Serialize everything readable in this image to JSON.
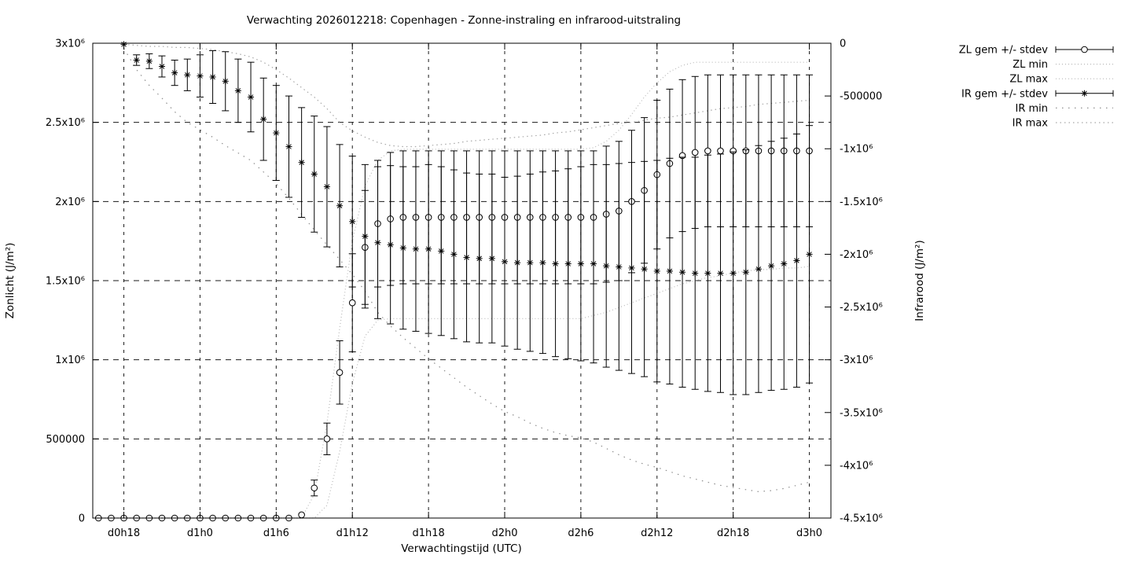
{
  "page": {
    "background": "#ffffff",
    "foreground": "#000000"
  },
  "chart_data": {
    "type": "line",
    "title": "Verwachting 2026012218: Copenhagen - Zonne-instraling en infrarood-uitstraling",
    "xlabel": "Verwachtingstijd (UTC)",
    "ylabel_left": "Zonlicht (J/m²)",
    "ylabel_right": "Infrarood (J/m²)",
    "grid": true,
    "legend_position": "outside-top-right",
    "x_points": "hourly samples, index 0..56; tick grid every 6 hours",
    "n_points": 57,
    "xlim_hours": [
      -0.45,
      57.7
    ],
    "x_ticks": {
      "hours": [
        2,
        8,
        14,
        20,
        26,
        32,
        38,
        44,
        50,
        56
      ],
      "labels": [
        "d0h18",
        "d1h0",
        "d1h6",
        "d1h12",
        "d1h18",
        "d2h0",
        "d2h6",
        "d2h12",
        "d2h18",
        "d3h0"
      ]
    },
    "y_left": {
      "unit": "J/m²",
      "lim_1e6": [
        0,
        3
      ],
      "tick_values_1e6": [
        0,
        0.5,
        1,
        1.5,
        2,
        2.5,
        3
      ],
      "tick_labels": [
        "0",
        "500000",
        "1x10⁶",
        "1.5x10⁶",
        "2x10⁶",
        "2.5x10⁶",
        "3x10⁶"
      ]
    },
    "y_right": {
      "unit": "J/m²",
      "lim_1e6": [
        -4.5,
        0
      ],
      "tick_values_1e6": [
        0,
        -0.5,
        -1,
        -1.5,
        -2,
        -2.5,
        -3,
        -3.5,
        -4,
        -4.5
      ],
      "tick_labels": [
        "0",
        "-500000",
        "-1x10⁶",
        "-1.5x10⁶",
        "-2x10⁶",
        "-2.5x10⁶",
        "-3x10⁶",
        "-3.5x10⁶",
        "-4x10⁶",
        "-4.5x10⁶"
      ]
    },
    "value_unit": "1e6 J/m²",
    "series": [
      {
        "name": "ZL gem +/- stdev",
        "axis": "left",
        "style": "errorbar",
        "marker": "circle",
        "color": "#000000",
        "values_1e6": [
          0,
          0,
          0,
          0,
          0,
          0,
          0,
          0,
          0,
          0,
          0,
          0,
          0,
          0,
          0,
          0,
          0.02,
          0.19,
          0.5,
          0.92,
          1.36,
          1.71,
          1.86,
          1.89,
          1.9,
          1.9,
          1.9,
          1.9,
          1.9,
          1.9,
          1.9,
          1.9,
          1.9,
          1.9,
          1.9,
          1.9,
          1.9,
          1.9,
          1.9,
          1.9,
          1.92,
          1.94,
          2,
          2.07,
          2.17,
          2.24,
          2.29,
          2.31,
          2.32,
          2.32,
          2.32,
          2.32,
          2.32,
          2.32,
          2.32,
          2.32,
          2.32
        ],
        "stdev_1e6": [
          0,
          0,
          0,
          0,
          0,
          0,
          0,
          0,
          0,
          0,
          0,
          0,
          0,
          0,
          0,
          0,
          0.01,
          0.05,
          0.1,
          0.2,
          0.31,
          0.36,
          0.4,
          0.42,
          0.42,
          0.42,
          0.42,
          0.42,
          0.42,
          0.42,
          0.42,
          0.42,
          0.42,
          0.42,
          0.42,
          0.42,
          0.42,
          0.42,
          0.42,
          0.42,
          0.43,
          0.44,
          0.45,
          0.46,
          0.47,
          0.47,
          0.48,
          0.48,
          0.48,
          0.48,
          0.48,
          0.48,
          0.48,
          0.48,
          0.48,
          0.48,
          0.48
        ]
      },
      {
        "name": "ZL min",
        "axis": "left",
        "style": "dotted",
        "color": "#b8b8b8",
        "dash": "1 3",
        "values_1e6": [
          0,
          0,
          0,
          0,
          0,
          0,
          0,
          0,
          0,
          0,
          0,
          0,
          0,
          0,
          0,
          0,
          0,
          0,
          0.08,
          0.42,
          0.85,
          1.15,
          1.25,
          1.26,
          1.26,
          1.26,
          1.26,
          1.26,
          1.26,
          1.26,
          1.26,
          1.26,
          1.26,
          1.26,
          1.26,
          1.26,
          1.26,
          1.26,
          1.26,
          1.28,
          1.3,
          1.33,
          1.36,
          1.39,
          1.42,
          1.45,
          1.48,
          1.5,
          1.52,
          1.53,
          1.55,
          1.56,
          1.57,
          1.57,
          1.58,
          1.58,
          1.59
        ]
      },
      {
        "name": "ZL max",
        "axis": "left",
        "style": "dotted",
        "color": "#b8b8b8",
        "dash": "1 3",
        "values_1e6": [
          0,
          0,
          0,
          0,
          0,
          0,
          0,
          0,
          0,
          0,
          0,
          0,
          0,
          0,
          0,
          0,
          0,
          0.15,
          0.6,
          1.2,
          1.75,
          2.1,
          2.26,
          2.32,
          2.33,
          2.33,
          2.33,
          2.33,
          2.33,
          2.33,
          2.33,
          2.33,
          2.33,
          2.33,
          2.33,
          2.33,
          2.33,
          2.33,
          2.33,
          2.34,
          2.38,
          2.45,
          2.55,
          2.66,
          2.75,
          2.82,
          2.86,
          2.88,
          2.88,
          2.88,
          2.88,
          2.88,
          2.88,
          2.88,
          2.88,
          2.88,
          2.88
        ]
      },
      {
        "name": "IR gem +/- stdev",
        "axis": "right",
        "style": "errorbar",
        "marker": "asterisk",
        "color": "#000000",
        "values_1e6": [
          null,
          null,
          -0.01,
          -0.16,
          -0.17,
          -0.22,
          -0.28,
          -0.3,
          -0.31,
          -0.32,
          -0.36,
          -0.45,
          -0.51,
          -0.72,
          -0.85,
          -0.98,
          -1.13,
          -1.24,
          -1.36,
          -1.54,
          -1.69,
          -1.83,
          -1.89,
          -1.91,
          -1.94,
          -1.95,
          -1.95,
          -1.97,
          -2,
          -2.03,
          -2.04,
          -2.04,
          -2.07,
          -2.08,
          -2.08,
          -2.08,
          -2.09,
          -2.09,
          -2.09,
          -2.09,
          -2.11,
          -2.12,
          -2.13,
          -2.14,
          -2.16,
          -2.16,
          -2.17,
          -2.18,
          -2.18,
          -2.18,
          -2.18,
          -2.17,
          -2.14,
          -2.11,
          -2.09,
          -2.06,
          -2
        ],
        "stdev_1e6": [
          null,
          null,
          0.01,
          0.05,
          0.07,
          0.1,
          0.12,
          0.15,
          0.2,
          0.25,
          0.28,
          0.3,
          0.33,
          0.39,
          0.45,
          0.48,
          0.52,
          0.55,
          0.57,
          0.58,
          0.62,
          0.68,
          0.72,
          0.75,
          0.77,
          0.78,
          0.8,
          0.8,
          0.8,
          0.8,
          0.8,
          0.8,
          0.8,
          0.82,
          0.84,
          0.86,
          0.88,
          0.9,
          0.92,
          0.94,
          0.96,
          0.98,
          1,
          1.02,
          1.05,
          1.07,
          1.09,
          1.1,
          1.12,
          1.13,
          1.15,
          1.16,
          1.17,
          1.18,
          1.19,
          1.2,
          1.22
        ]
      },
      {
        "name": "IR min",
        "axis": "right",
        "style": "dotted",
        "color": "#8f8f8f",
        "dash": "1.5 6.5",
        "values_1e6": [
          null,
          null,
          -0.05,
          -0.25,
          -0.4,
          -0.52,
          -0.65,
          -0.75,
          -0.82,
          -0.89,
          -0.97,
          -1.04,
          -1.11,
          -1.22,
          -1.33,
          -1.47,
          -1.62,
          -1.77,
          -1.91,
          -2.05,
          -2.19,
          -2.35,
          -2.55,
          -2.68,
          -2.79,
          -2.89,
          -2.99,
          -3.08,
          -3.17,
          -3.26,
          -3.34,
          -3.42,
          -3.49,
          -3.54,
          -3.6,
          -3.65,
          -3.69,
          -3.72,
          -3.74,
          -3.78,
          -3.84,
          -3.9,
          -3.95,
          -3.99,
          -4.02,
          -4.06,
          -4.1,
          -4.13,
          -4.16,
          -4.19,
          -4.21,
          -4.23,
          -4.25,
          -4.24,
          -4.22,
          -4.19,
          -4.16
        ]
      },
      {
        "name": "IR max",
        "axis": "right",
        "style": "dotted",
        "color": "#a8a8a8",
        "dash": "1.5 4",
        "values_1e6": [
          null,
          null,
          -0.01,
          -0.02,
          -0.03,
          -0.03,
          -0.04,
          -0.04,
          -0.05,
          -0.06,
          -0.08,
          -0.1,
          -0.13,
          -0.18,
          -0.25,
          -0.33,
          -0.42,
          -0.51,
          -0.62,
          -0.75,
          -0.83,
          -0.89,
          -0.94,
          -0.97,
          -0.98,
          -0.98,
          -0.97,
          -0.96,
          -0.95,
          -0.93,
          -0.92,
          -0.91,
          -0.9,
          -0.89,
          -0.88,
          -0.87,
          -0.85,
          -0.84,
          -0.82,
          -0.8,
          -0.78,
          -0.76,
          -0.75,
          -0.73,
          -0.71,
          -0.7,
          -0.68,
          -0.66,
          -0.64,
          -0.62,
          -0.61,
          -0.6,
          -0.58,
          -0.57,
          -0.56,
          -0.55,
          -0.54
        ]
      }
    ]
  }
}
